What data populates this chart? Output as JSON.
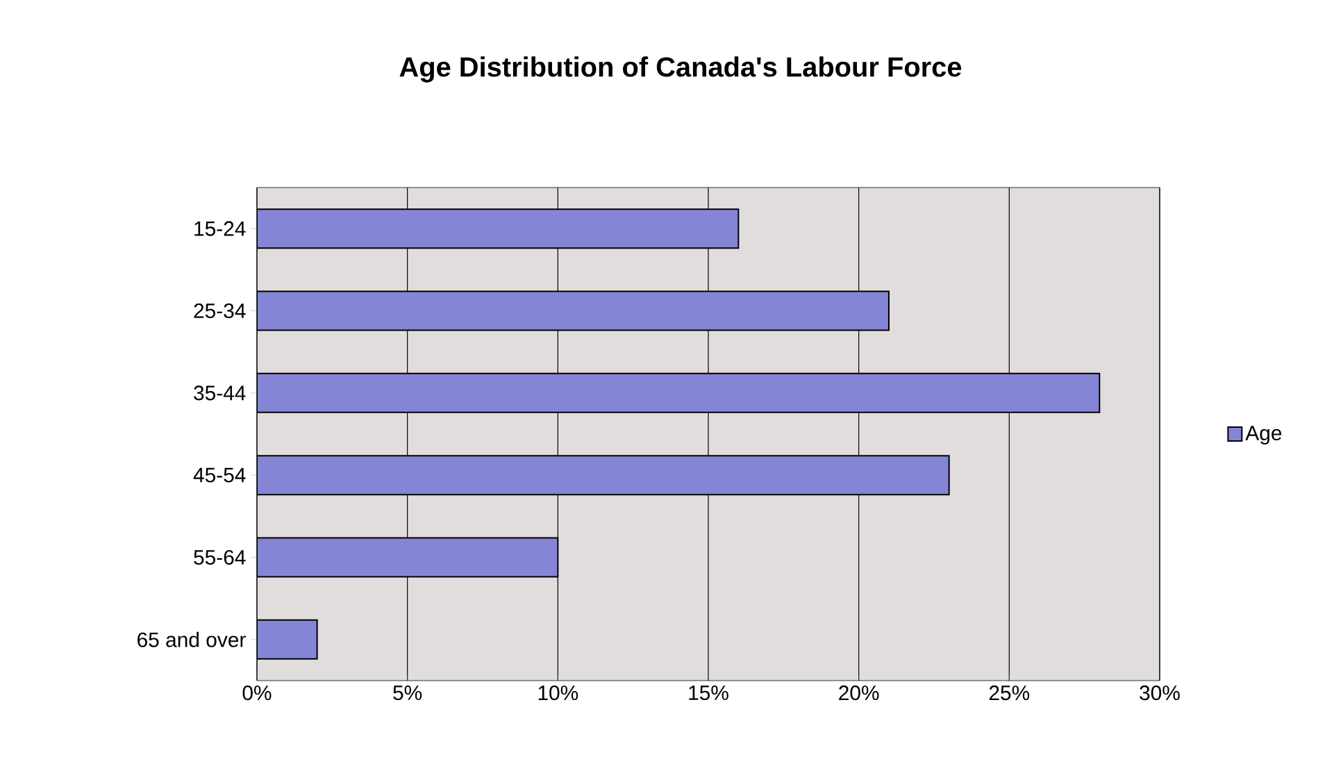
{
  "chart_data": {
    "type": "bar",
    "orientation": "horizontal",
    "title": "Age Distribution of Canada's Labour Force",
    "categories": [
      "15-24",
      "25-34",
      "35-44",
      "45-54",
      "55-64",
      "65 and over"
    ],
    "series": [
      {
        "name": "Age",
        "color": "#8585d6",
        "values": [
          16,
          21,
          28,
          23,
          10,
          2
        ]
      }
    ],
    "xlim": [
      0,
      30
    ],
    "xticks": [
      {
        "value": 0,
        "label": "0%"
      },
      {
        "value": 5,
        "label": "5%"
      },
      {
        "value": 10,
        "label": "10%"
      },
      {
        "value": 15,
        "label": "15%"
      },
      {
        "value": 20,
        "label": "20%"
      },
      {
        "value": 25,
        "label": "25%"
      },
      {
        "value": 30,
        "label": "30%"
      }
    ],
    "grid": "x",
    "legend": "right"
  }
}
